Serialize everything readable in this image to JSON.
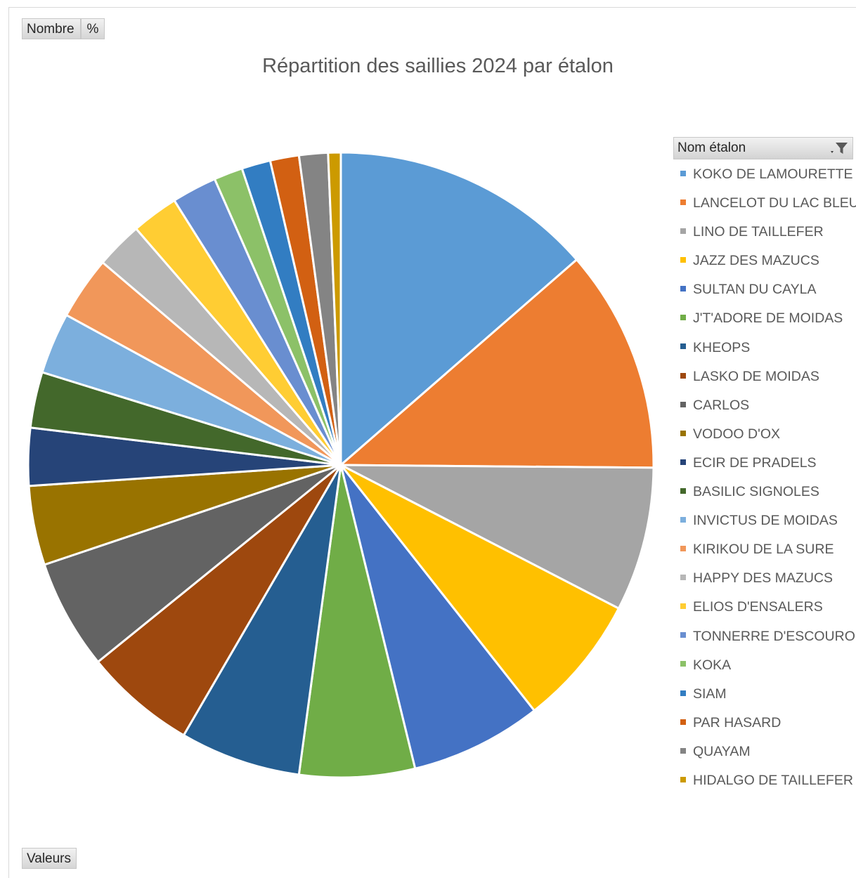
{
  "buttons": {
    "nombre": "Nombre",
    "percent": "%",
    "valeurs": "Valeurs"
  },
  "legend_header": "Nom étalon",
  "chart_data": {
    "type": "pie",
    "title": "Répartition des saillies 2024 par étalon",
    "legend_position": "right",
    "start_angle": "12 o'clock, clockwise",
    "categories": [
      "KOKO DE LAMOURETTE",
      "LANCELOT DU LAC BLEU",
      "LINO DE TAILLEFER",
      "JAZZ DES MAZUCS",
      "SULTAN DU CAYLA",
      "J'T'ADORE DE MOIDAS",
      "KHEOPS",
      "LASKO DE MOIDAS",
      "CARLOS",
      "VODOO D'OX",
      "ECIR DE PRADELS",
      "BASILIC SIGNOLES",
      "INVICTUS DE MOIDAS",
      "KIRIKOU DE LA SURE",
      "HAPPY DES MAZUCS",
      "ELIOS D'ENSALERS",
      "TONNERRE D'ESCOUROL",
      "KOKA",
      "SIAM",
      "PAR HASARD",
      "QUAYAM",
      "HIDALGO DE TAILLEFER"
    ],
    "values": [
      14.6,
      12.4,
      8.0,
      7.3,
      7.3,
      6.4,
      6.7,
      6.2,
      6.1,
      4.4,
      3.2,
      3.1,
      3.4,
      3.5,
      2.6,
      2.6,
      2.5,
      1.6,
      1.6,
      1.6,
      1.6,
      0.7
    ],
    "colors": [
      "#5B9BD5",
      "#ED7D31",
      "#A5A5A5",
      "#FFC000",
      "#4472C4",
      "#70AD47",
      "#255E91",
      "#9E480E",
      "#636363",
      "#997300",
      "#264478",
      "#43682B",
      "#7CAFDD",
      "#F1975A",
      "#B7B7B7",
      "#FFCD33",
      "#698ED0",
      "#8CC168",
      "#327DC2",
      "#D26012",
      "#848484",
      "#CC9A00"
    ]
  }
}
